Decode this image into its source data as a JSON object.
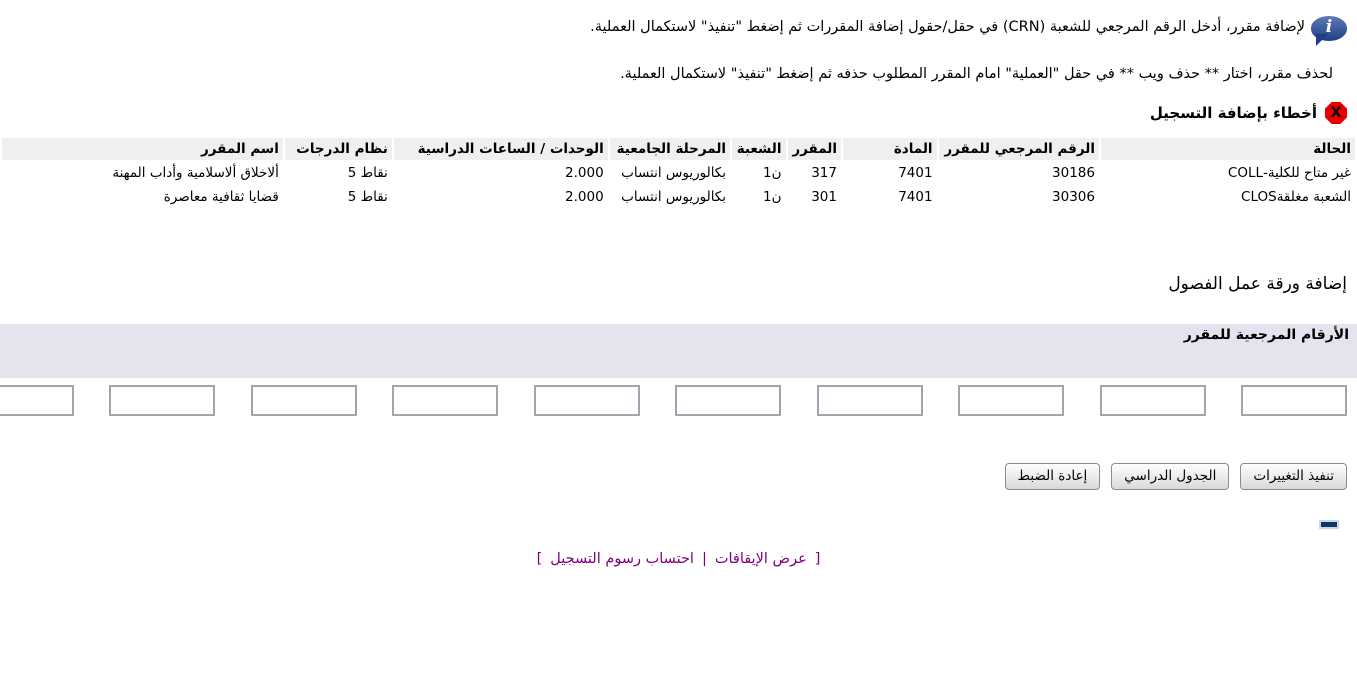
{
  "instructions": {
    "line1": "لإضافة مقرر، أدخل الرقم المرجعي للشعبة (CRN) في حقل/حقول إضافة المقررات ثم إضغط \"تنفيذ\" لاستكمال العملية.",
    "line2": "لحذف مقرر، اختار ** حذف ويب ** في حقل \"العملية\" امام المقرر المطلوب حذفه ثم إضغط \"تنفيذ\" لاستكمال العملية.",
    "info_icon": "info-speech-bubble-icon",
    "info_icon_color": "#1e3f86"
  },
  "errors_section": {
    "title": "أخطاء بإضافة التسجيل",
    "icon": "stop-x-icon",
    "icon_color": "#e80000",
    "table": {
      "headers": [
        "الحالة",
        "الرقم المرجعي للمقرر",
        "المادة",
        "المقرر",
        "الشعبة",
        "المرحلة الجامعية",
        "الوحدات / الساعات الدراسية",
        "نظام الدرجات",
        "اسم المقرر"
      ],
      "rows": [
        [
          "غير متاح للكلية-COLL",
          "30186",
          "7401",
          "317",
          "ن1",
          "بكالوريوس انتساب",
          "2.000",
          "نقاط 5",
          "ألاخلاق ألاسلامية وأداب المهنة"
        ],
        [
          "الشعبة مغلقةCLOS",
          "30306",
          "7401",
          "301",
          "ن1",
          "بكالوريوس انتساب",
          "2.000",
          "نقاط 5",
          "قضايا ثقافية معاصرة"
        ]
      ]
    }
  },
  "worksheet": {
    "title": "إضافة ورقة عمل الفصول",
    "crn_label": "الأرقام المرجعية للمقرر",
    "crn_bar_color": "#e4e4ee",
    "input_count": 10,
    "input_value": ""
  },
  "buttons": [
    {
      "name": "submit-changes-button",
      "label": "تنفيذ التغييرات"
    },
    {
      "name": "class-schedule-button",
      "label": "الجدول الدراسي"
    },
    {
      "name": "reset-button",
      "label": "إعادة الضبط"
    }
  ],
  "footer": {
    "open_bracket": "[",
    "separator": "|",
    "close_bracket": "]",
    "links": [
      {
        "name": "view-holds-link",
        "label": "عرض الإيقافات"
      },
      {
        "name": "registration-fees-link",
        "label": "احتساب رسوم التسجيل"
      }
    ],
    "link_color": "#800080"
  }
}
